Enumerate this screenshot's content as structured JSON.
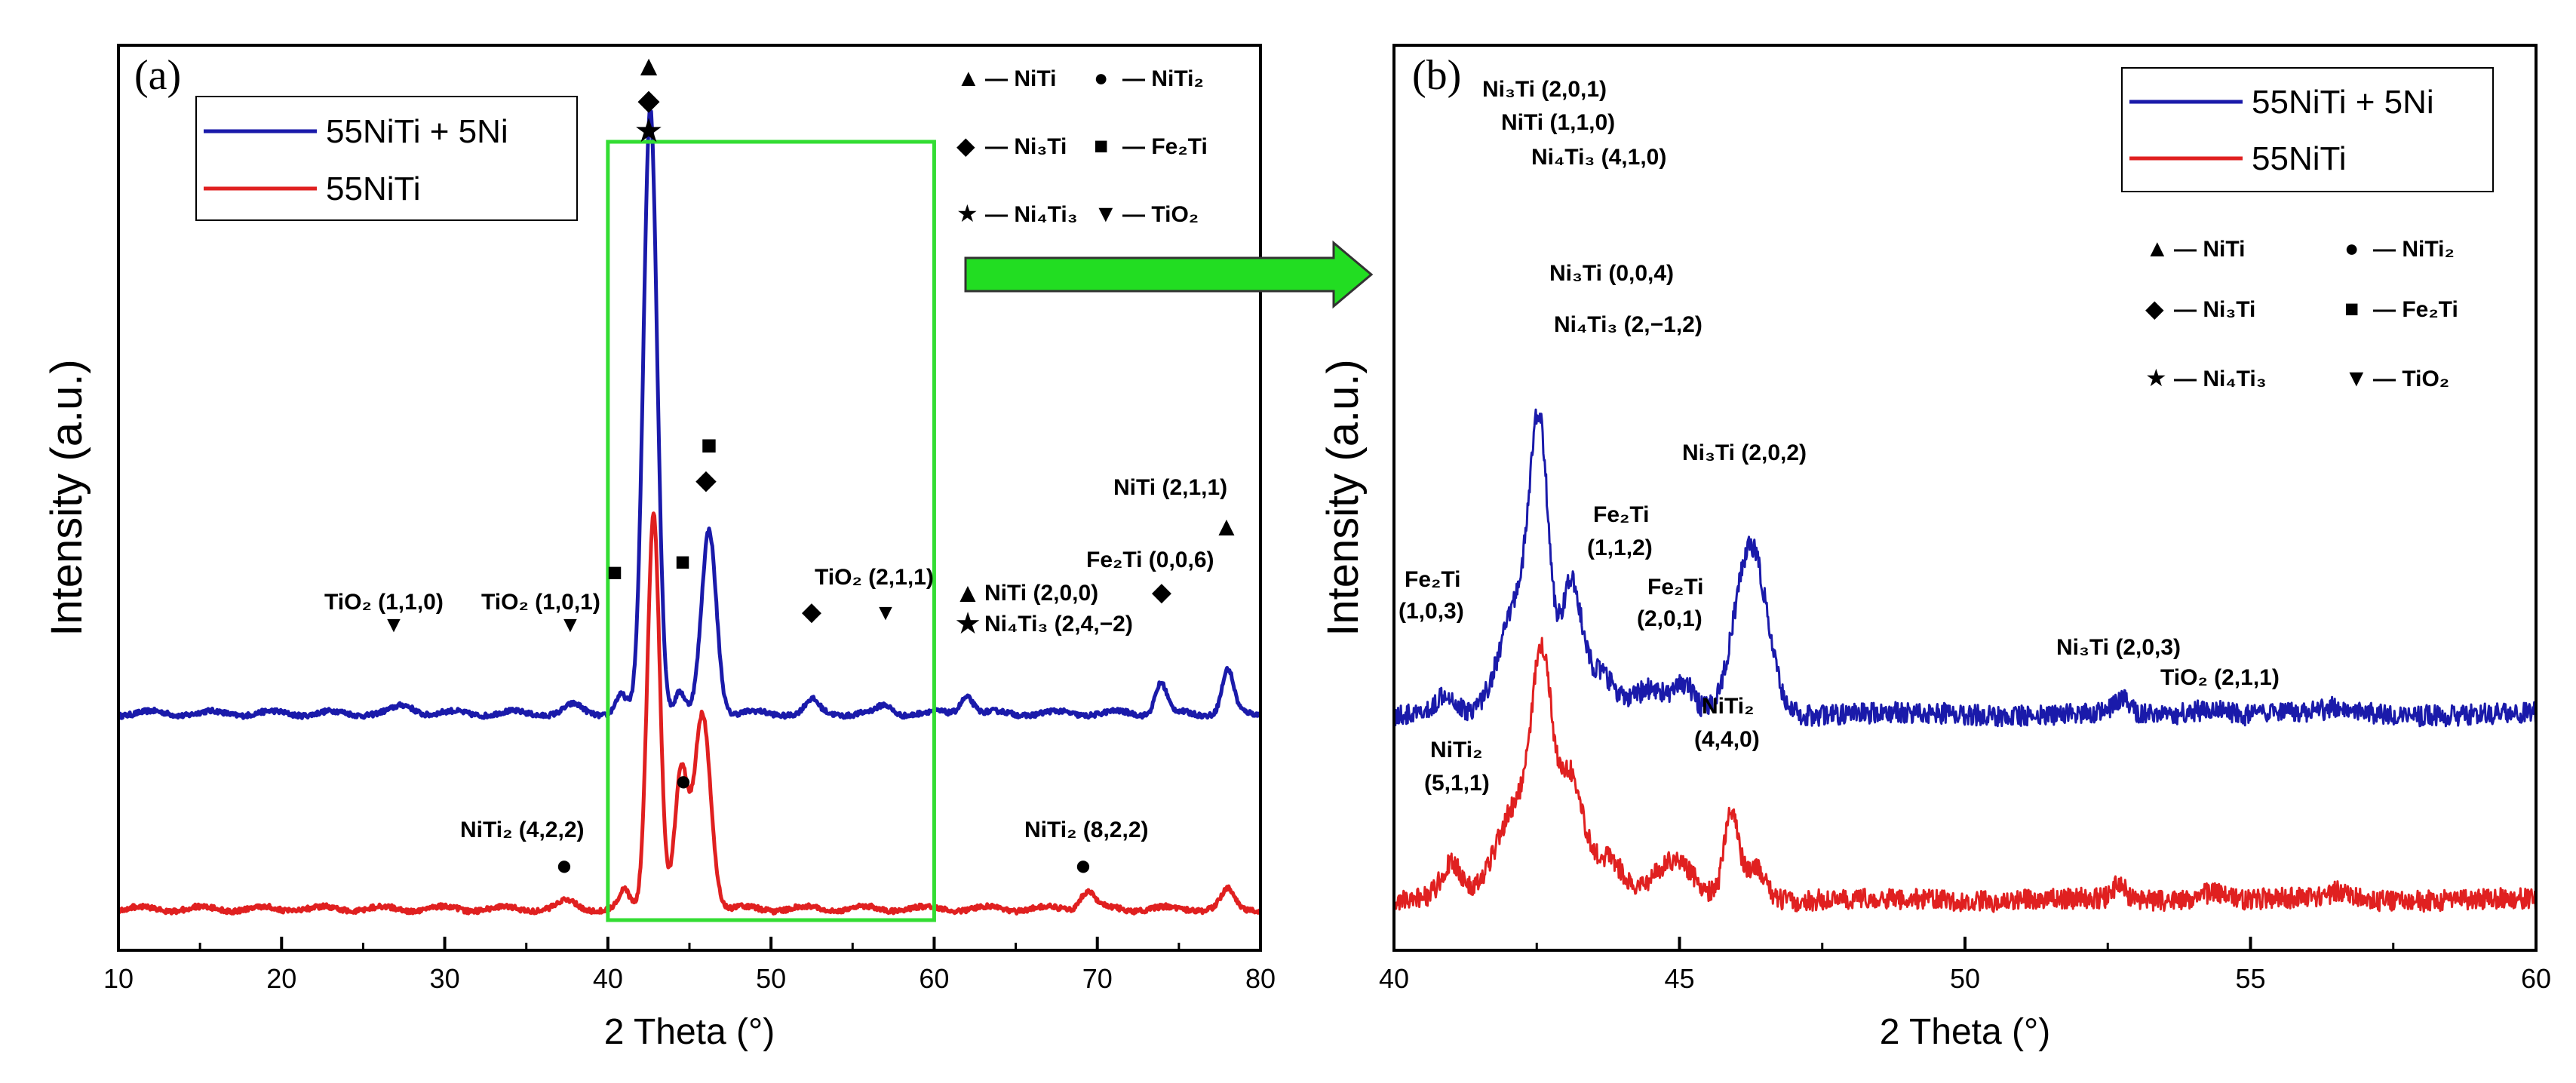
{
  "chart_data": [
    {
      "type": "line",
      "panel_label": "(a)",
      "xlabel": "2 Theta (°)",
      "ylabel": "Intensity (a.u.)",
      "xlim": [
        10,
        80
      ],
      "x_ticks": [
        "10",
        "20",
        "30",
        "40",
        "50",
        "60",
        "70",
        "80"
      ],
      "legend": [
        "55NiTi + 5Ni",
        "55NiTi"
      ],
      "series": [
        {
          "name": "55NiTi + 5Ni",
          "color": "#1a1aaa",
          "baseline": 0.32,
          "noise": 0.004,
          "peaks": [
            [
              27.6,
              0.012,
              0.6
            ],
            [
              37.9,
              0.012,
              0.5
            ],
            [
              40.8,
              0.03,
              0.35
            ],
            [
              42.6,
              0.99,
              0.42
            ],
            [
              44.4,
              0.035,
              0.3
            ],
            [
              46.2,
              0.3,
              0.45
            ],
            [
              52.5,
              0.02,
              0.4
            ],
            [
              57.0,
              0.012,
              0.4
            ],
            [
              62.0,
              0.03,
              0.4
            ],
            [
              73.9,
              0.05,
              0.35
            ],
            [
              78.0,
              0.07,
              0.35
            ]
          ]
        },
        {
          "name": "55NiTi",
          "color": "#e02020",
          "baseline": 0.0,
          "noise": 0.004,
          "peaks": [
            [
              37.5,
              0.012,
              0.5
            ],
            [
              41.0,
              0.03,
              0.3
            ],
            [
              42.8,
              0.65,
              0.38
            ],
            [
              44.5,
              0.22,
              0.4
            ],
            [
              45.8,
              0.32,
              0.5
            ],
            [
              69.4,
              0.03,
              0.45
            ],
            [
              78.0,
              0.03,
              0.4
            ]
          ]
        }
      ],
      "highlight_box": {
        "x_from": 40,
        "x_to": 60
      },
      "symbol_legend": [
        {
          "symbol": "▲",
          "label": "— NiTi"
        },
        {
          "symbol": "●",
          "label": "— NiTi₂"
        },
        {
          "symbol": "◆",
          "label": "— Ni₃Ti"
        },
        {
          "symbol": "■",
          "label": "— Fe₂Ti"
        },
        {
          "symbol": "★",
          "label": "— Ni₄Ti₃"
        },
        {
          "symbol": "▼",
          "label": "— TiO₂"
        }
      ],
      "annotations": [
        {
          "symbol": "▼",
          "label": "TiO₂ (1,1,0)",
          "x": 27.6
        },
        {
          "symbol": "▼",
          "label": "TiO₂ (1,0,1)",
          "x": 37.9
        },
        {
          "symbol": "■",
          "label": "",
          "x": 40.5
        },
        {
          "symbol": "▲◆★",
          "label": "",
          "x": 42.6
        },
        {
          "symbol": "■",
          "label": "",
          "x": 44.6
        },
        {
          "symbol": "■◆",
          "label": "",
          "x": 46.2
        },
        {
          "symbol": "◆",
          "label": "",
          "x": 52.5
        },
        {
          "symbol": "▼",
          "label": "TiO₂ (2,1,1)",
          "x": 57.0
        },
        {
          "symbol": "▲",
          "label": "NiTi (2,0,0)",
          "x": 62.0
        },
        {
          "symbol": "★",
          "label": "Ni₄Ti₃ (2,4,−2)",
          "x": 62.0
        },
        {
          "symbol": "◆",
          "label": "Fe₂Ti (0,0,6)",
          "x": 74.0
        },
        {
          "symbol": "▲",
          "label": "NiTi (2,1,1)",
          "x": 78.0
        },
        {
          "symbol": "●",
          "label": "NiTi₂ (4,2,2)",
          "x": 37.5
        },
        {
          "symbol": "●",
          "label": "",
          "x": 44.6
        },
        {
          "symbol": "●",
          "label": "NiTi₂ (8,2,2)",
          "x": 69.4
        }
      ]
    },
    {
      "type": "line",
      "panel_label": "(b)",
      "xlabel": "2 Theta (°)",
      "ylabel": "Intensity (a.u.)",
      "xlim": [
        40,
        60
      ],
      "x_ticks": [
        "40",
        "45",
        "50",
        "55",
        "60"
      ],
      "legend": [
        "55NiTi + 5Ni",
        "55NiTi"
      ],
      "series": [
        {
          "name": "55NiTi + 5Ni",
          "color": "#1a1aaa",
          "baseline": 0.47,
          "noise": 0.025,
          "peaks": [
            [
              40.9,
              0.05,
              0.15
            ],
            [
              42.2,
              0.27,
              0.32
            ],
            [
              42.55,
              0.56,
              0.16
            ],
            [
              43.1,
              0.3,
              0.18
            ],
            [
              43.6,
              0.1,
              0.25
            ],
            [
              44.5,
              0.06,
              0.3
            ],
            [
              45.1,
              0.06,
              0.15
            ],
            [
              46.25,
              0.4,
              0.28
            ],
            [
              52.75,
              0.03,
              0.12
            ],
            [
              54.3,
              0.015,
              0.25
            ],
            [
              56.6,
              0.015,
              0.25
            ]
          ]
        },
        {
          "name": "55NiTi",
          "color": "#e02020",
          "baseline": 0.03,
          "noise": 0.025,
          "peaks": [
            [
              41.0,
              0.08,
              0.18
            ],
            [
              42.15,
              0.22,
              0.35
            ],
            [
              42.6,
              0.5,
              0.18
            ],
            [
              43.1,
              0.28,
              0.2
            ],
            [
              43.7,
              0.1,
              0.3
            ],
            [
              44.9,
              0.09,
              0.35
            ],
            [
              45.9,
              0.2,
              0.12
            ],
            [
              46.3,
              0.08,
              0.2
            ],
            [
              52.7,
              0.04,
              0.1
            ],
            [
              54.3,
              0.02,
              0.2
            ],
            [
              56.6,
              0.02,
              0.2
            ]
          ]
        }
      ],
      "symbol_legend": [
        {
          "symbol": "▲",
          "label": "— NiTi"
        },
        {
          "symbol": "●",
          "label": "— NiTi₂"
        },
        {
          "symbol": "◆",
          "label": "— Ni₃Ti"
        },
        {
          "symbol": "■",
          "label": "— Fe₂Ti"
        },
        {
          "symbol": "★",
          "label": "— Ni₄Ti₃"
        },
        {
          "symbol": "▼",
          "label": "— TiO₂"
        }
      ],
      "annotations": [
        "Ni₃Ti (2,0,1)",
        "NiTi (1,1,0)",
        "Ni₄Ti₃ (4,1,0)",
        "Ni₃Ti (0,0,4)",
        "Ni₄Ti₃ (2,−1,2)",
        "Fe₂Ti (1,0,3)",
        "Fe₂Ti (1,1,2)",
        "Fe₂Ti (2,0,1)",
        "Ni₃Ti (2,0,2)",
        "NiTi₂ (5,1,1)",
        "NiTi₂ (4,4,0)",
        "Ni₃Ti (2,0,3)",
        "TiO₂ (2,1,1)"
      ]
    }
  ]
}
